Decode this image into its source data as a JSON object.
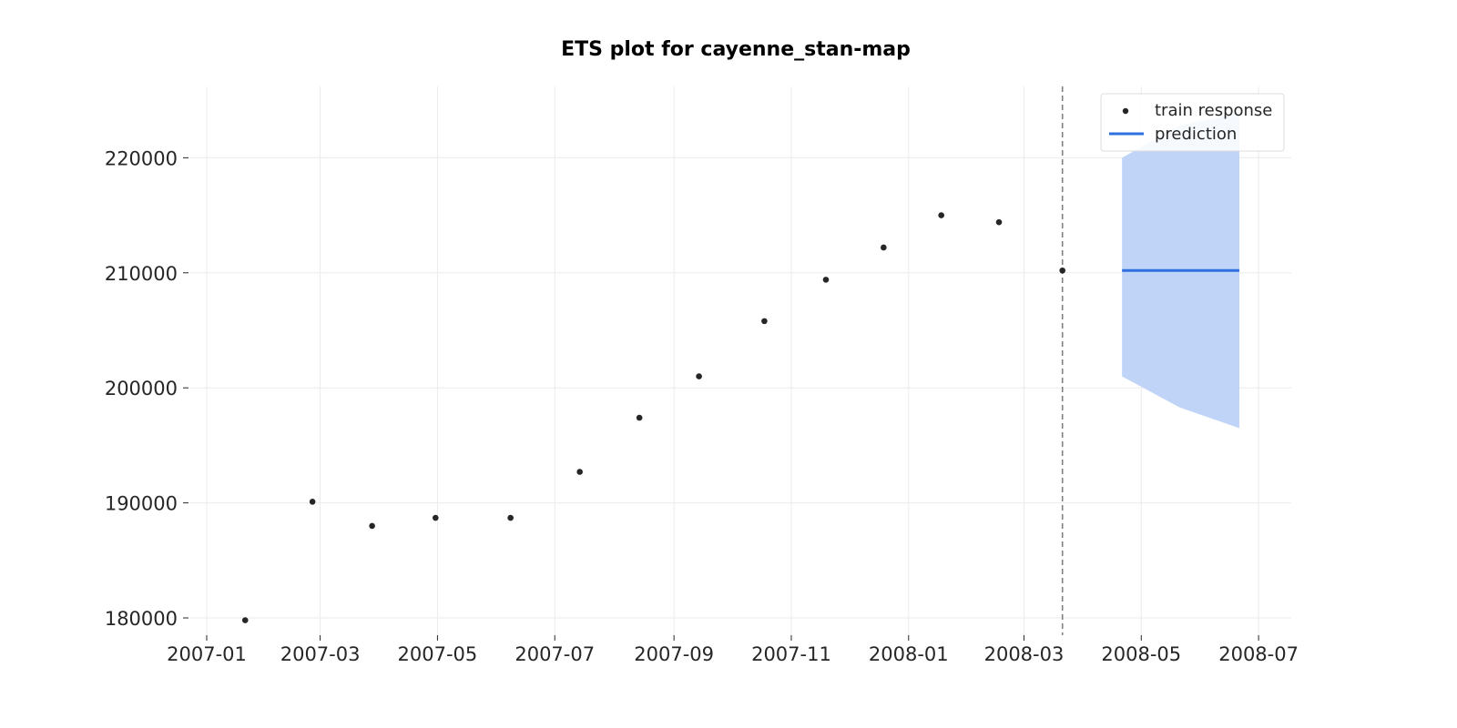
{
  "chart_data": {
    "type": "scatter",
    "title": "ETS plot for cayenne_stan-map",
    "xlabel": "",
    "ylabel": "",
    "x_axis": {
      "kind": "date",
      "range": [
        "2006-12-23",
        "2008-07-18"
      ],
      "ticks": [
        "2007-01",
        "2007-03",
        "2007-05",
        "2007-07",
        "2007-09",
        "2007-11",
        "2008-01",
        "2008-03",
        "2008-05",
        "2008-07"
      ]
    },
    "y_axis": {
      "range": [
        178500,
        226200
      ],
      "ticks": [
        180000,
        190000,
        200000,
        210000,
        220000
      ]
    },
    "grid": true,
    "legend_position": "top-right",
    "train_response": {
      "name": "train response",
      "color": "#262626",
      "points": [
        {
          "x": "2007-01-21",
          "y": 179800
        },
        {
          "x": "2007-02-25",
          "y": 190100
        },
        {
          "x": "2007-03-28",
          "y": 188000
        },
        {
          "x": "2007-04-30",
          "y": 188700
        },
        {
          "x": "2007-06-08",
          "y": 188700
        },
        {
          "x": "2007-07-14",
          "y": 192700
        },
        {
          "x": "2007-08-14",
          "y": 197400
        },
        {
          "x": "2007-09-14",
          "y": 201000
        },
        {
          "x": "2007-10-18",
          "y": 205800
        },
        {
          "x": "2007-11-19",
          "y": 209400
        },
        {
          "x": "2007-12-19",
          "y": 212200
        },
        {
          "x": "2008-01-18",
          "y": 215000
        },
        {
          "x": "2008-02-17",
          "y": 214400
        },
        {
          "x": "2008-03-21",
          "y": 210200
        }
      ]
    },
    "train_cutoff": {
      "x": "2008-03-21",
      "style": "dashed",
      "color": "#808080"
    },
    "prediction": {
      "name": "prediction",
      "color": "#2f6fdf",
      "band_color": "#c0d4f8",
      "points": [
        {
          "x": "2008-04-21",
          "y": 210200,
          "lower": 201000,
          "upper": 220000
        },
        {
          "x": "2008-05-21",
          "y": 210200,
          "lower": 198300,
          "upper": 222800
        },
        {
          "x": "2008-06-21",
          "y": 210200,
          "lower": 196500,
          "upper": 223900
        }
      ]
    }
  }
}
